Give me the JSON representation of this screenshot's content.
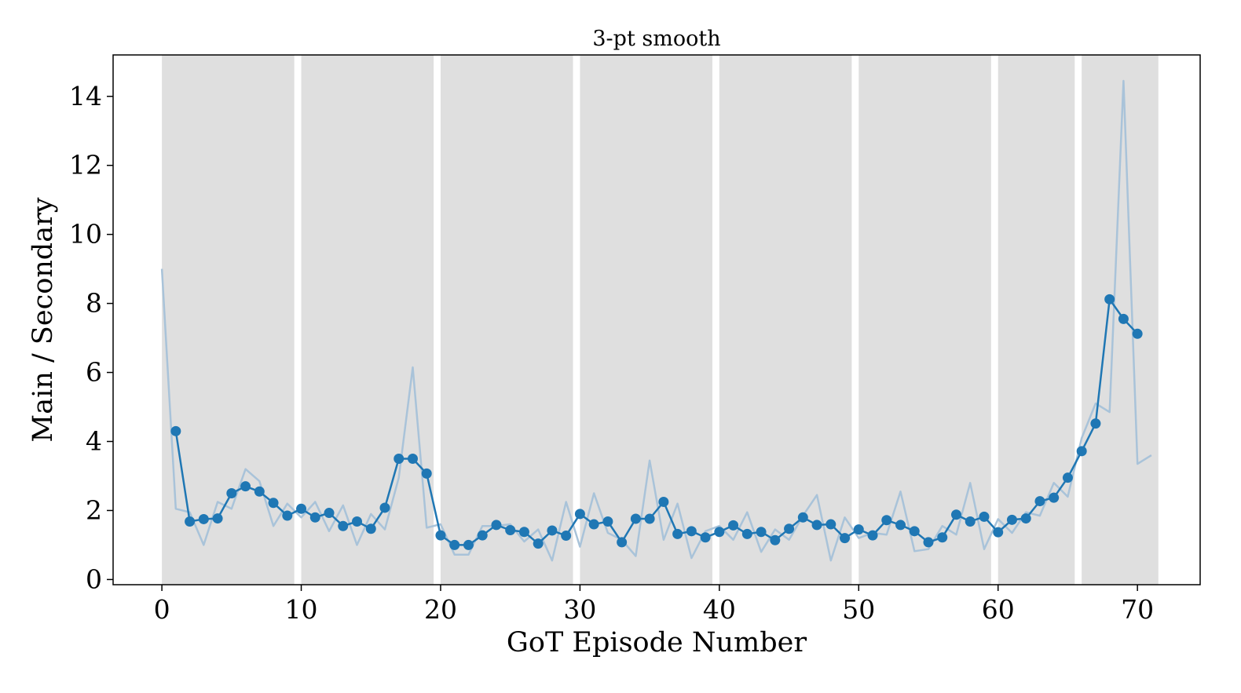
{
  "chart_data": {
    "type": "line",
    "title": "3-pt smooth",
    "xlabel": "GoT Episode Number",
    "ylabel": "Main / Secondary",
    "xlim": [
      -3.5,
      74.5
    ],
    "ylim": [
      -0.15,
      15.2
    ],
    "xticks": [
      0,
      10,
      20,
      30,
      40,
      50,
      60,
      70
    ],
    "yticks": [
      0,
      2,
      4,
      6,
      8,
      10,
      12,
      14
    ],
    "grid": false,
    "legend": "none",
    "season_bands": [
      [
        0,
        9.5
      ],
      [
        10,
        19.5
      ],
      [
        20,
        29.5
      ],
      [
        30,
        39.5
      ],
      [
        40,
        49.5
      ],
      [
        50,
        59.5
      ],
      [
        60,
        65.5
      ],
      [
        66,
        71.5
      ]
    ],
    "colors": {
      "band": "#dfdfdf",
      "raw": "#a9c3d9",
      "smooth": "#1f77b4"
    },
    "series": [
      {
        "style": "raw",
        "x": [
          0,
          1,
          2,
          3,
          4,
          5,
          6,
          7,
          8,
          9,
          10,
          11,
          12,
          13,
          14,
          15,
          16,
          17,
          18,
          19,
          20,
          21,
          22,
          23,
          24,
          25,
          26,
          27,
          28,
          29,
          30,
          31,
          32,
          33,
          34,
          35,
          36,
          37,
          38,
          39,
          40,
          41,
          42,
          43,
          44,
          45,
          46,
          47,
          48,
          49,
          50,
          51,
          52,
          53,
          54,
          55,
          56,
          57,
          58,
          59,
          60,
          61,
          62,
          63,
          64,
          65,
          66,
          67,
          68,
          69,
          70,
          71
        ],
        "values": [
          9.0,
          2.05,
          1.95,
          1.0,
          2.25,
          2.05,
          3.2,
          2.85,
          1.55,
          2.2,
          1.8,
          2.25,
          1.4,
          2.15,
          1.0,
          1.9,
          1.45,
          2.95,
          6.15,
          1.5,
          1.6,
          0.72,
          0.72,
          1.55,
          1.55,
          1.6,
          1.1,
          1.45,
          0.55,
          2.25,
          0.95,
          2.5,
          1.35,
          1.15,
          0.68,
          3.45,
          1.15,
          2.2,
          0.62,
          1.4,
          1.55,
          1.15,
          1.95,
          0.8,
          1.45,
          1.15,
          1.85,
          2.45,
          0.55,
          1.8,
          1.2,
          1.35,
          1.3,
          2.55,
          0.82,
          0.88,
          1.55,
          1.3,
          2.8,
          0.88,
          1.75,
          1.35,
          1.95,
          1.85,
          2.8,
          2.4,
          4.1,
          5.1,
          4.85,
          14.45,
          3.35,
          3.6
        ]
      },
      {
        "style": "smooth",
        "x": [
          1,
          2,
          3,
          4,
          5,
          6,
          7,
          8,
          9,
          10,
          11,
          12,
          13,
          14,
          15,
          16,
          17,
          18,
          19,
          20,
          21,
          22,
          23,
          24,
          25,
          26,
          27,
          28,
          29,
          30,
          31,
          32,
          33,
          34,
          35,
          36,
          37,
          38,
          39,
          40,
          41,
          42,
          43,
          44,
          45,
          46,
          47,
          48,
          49,
          50,
          51,
          52,
          53,
          54,
          55,
          56,
          57,
          58,
          59,
          60,
          61,
          62,
          63,
          64,
          65,
          66,
          67,
          68,
          69,
          70
        ],
        "values": [
          4.3,
          1.68,
          1.75,
          1.77,
          2.5,
          2.7,
          2.55,
          2.22,
          1.85,
          2.05,
          1.8,
          1.93,
          1.55,
          1.68,
          1.47,
          2.08,
          3.5,
          3.5,
          3.07,
          1.28,
          1.0,
          1.0,
          1.28,
          1.58,
          1.43,
          1.38,
          1.04,
          1.42,
          1.27,
          1.9,
          1.6,
          1.68,
          1.08,
          1.76,
          1.76,
          2.25,
          1.32,
          1.4,
          1.22,
          1.38,
          1.57,
          1.32,
          1.38,
          1.14,
          1.47,
          1.8,
          1.58,
          1.6,
          1.2,
          1.45,
          1.28,
          1.72,
          1.58,
          1.4,
          1.08,
          1.22,
          1.88,
          1.68,
          1.82,
          1.37,
          1.73,
          1.77,
          2.27,
          2.37,
          2.95,
          3.72,
          4.52,
          8.12,
          7.55,
          7.12
        ]
      }
    ]
  }
}
